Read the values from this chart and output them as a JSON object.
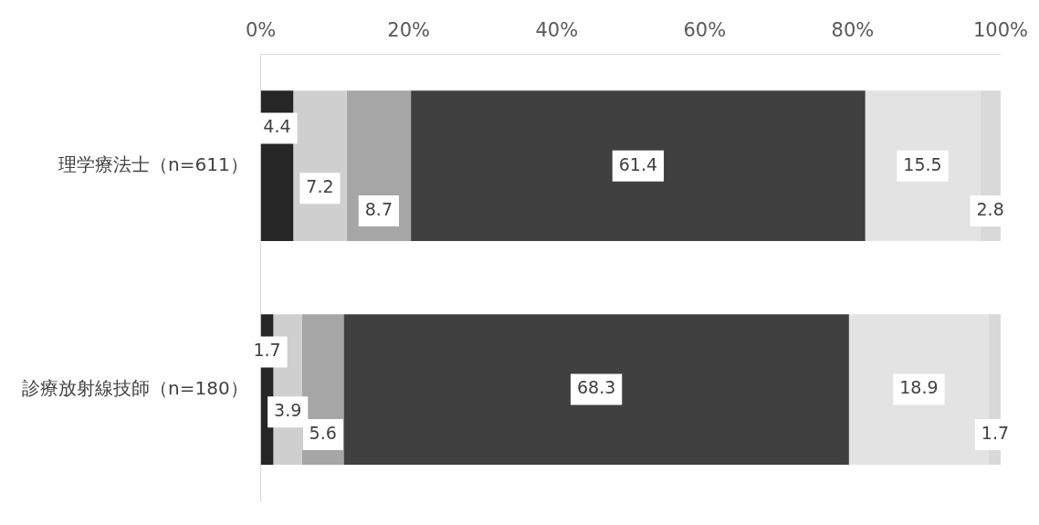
{
  "chart_data": {
    "type": "bar",
    "orientation": "horizontal",
    "stacked": true,
    "categories": [
      "理学療法士（n=611）",
      "診療放射線技師（n=180）"
    ],
    "series": [
      {
        "color": "#262626",
        "values": [
          4.4,
          1.7
        ]
      },
      {
        "color": "#cfcfcf",
        "values": [
          7.2,
          3.9
        ]
      },
      {
        "color": "#a6a6a6",
        "values": [
          8.7,
          5.6
        ]
      },
      {
        "color": "#404040",
        "values": [
          61.4,
          68.3
        ]
      },
      {
        "color": "#e3e3e3",
        "values": [
          15.5,
          18.9
        ]
      },
      {
        "color": "#d9d9d9",
        "values": [
          2.8,
          1.7
        ]
      }
    ],
    "xlim": [
      0,
      100
    ],
    "xticks": [
      {
        "value": 0,
        "label": "0%"
      },
      {
        "value": 20,
        "label": "20%"
      },
      {
        "value": 40,
        "label": "40%"
      },
      {
        "value": 60,
        "label": "60%"
      },
      {
        "value": 80,
        "label": "80%"
      },
      {
        "value": 100,
        "label": "100%"
      }
    ],
    "data_labels": true,
    "grid": false,
    "legend": false
  }
}
